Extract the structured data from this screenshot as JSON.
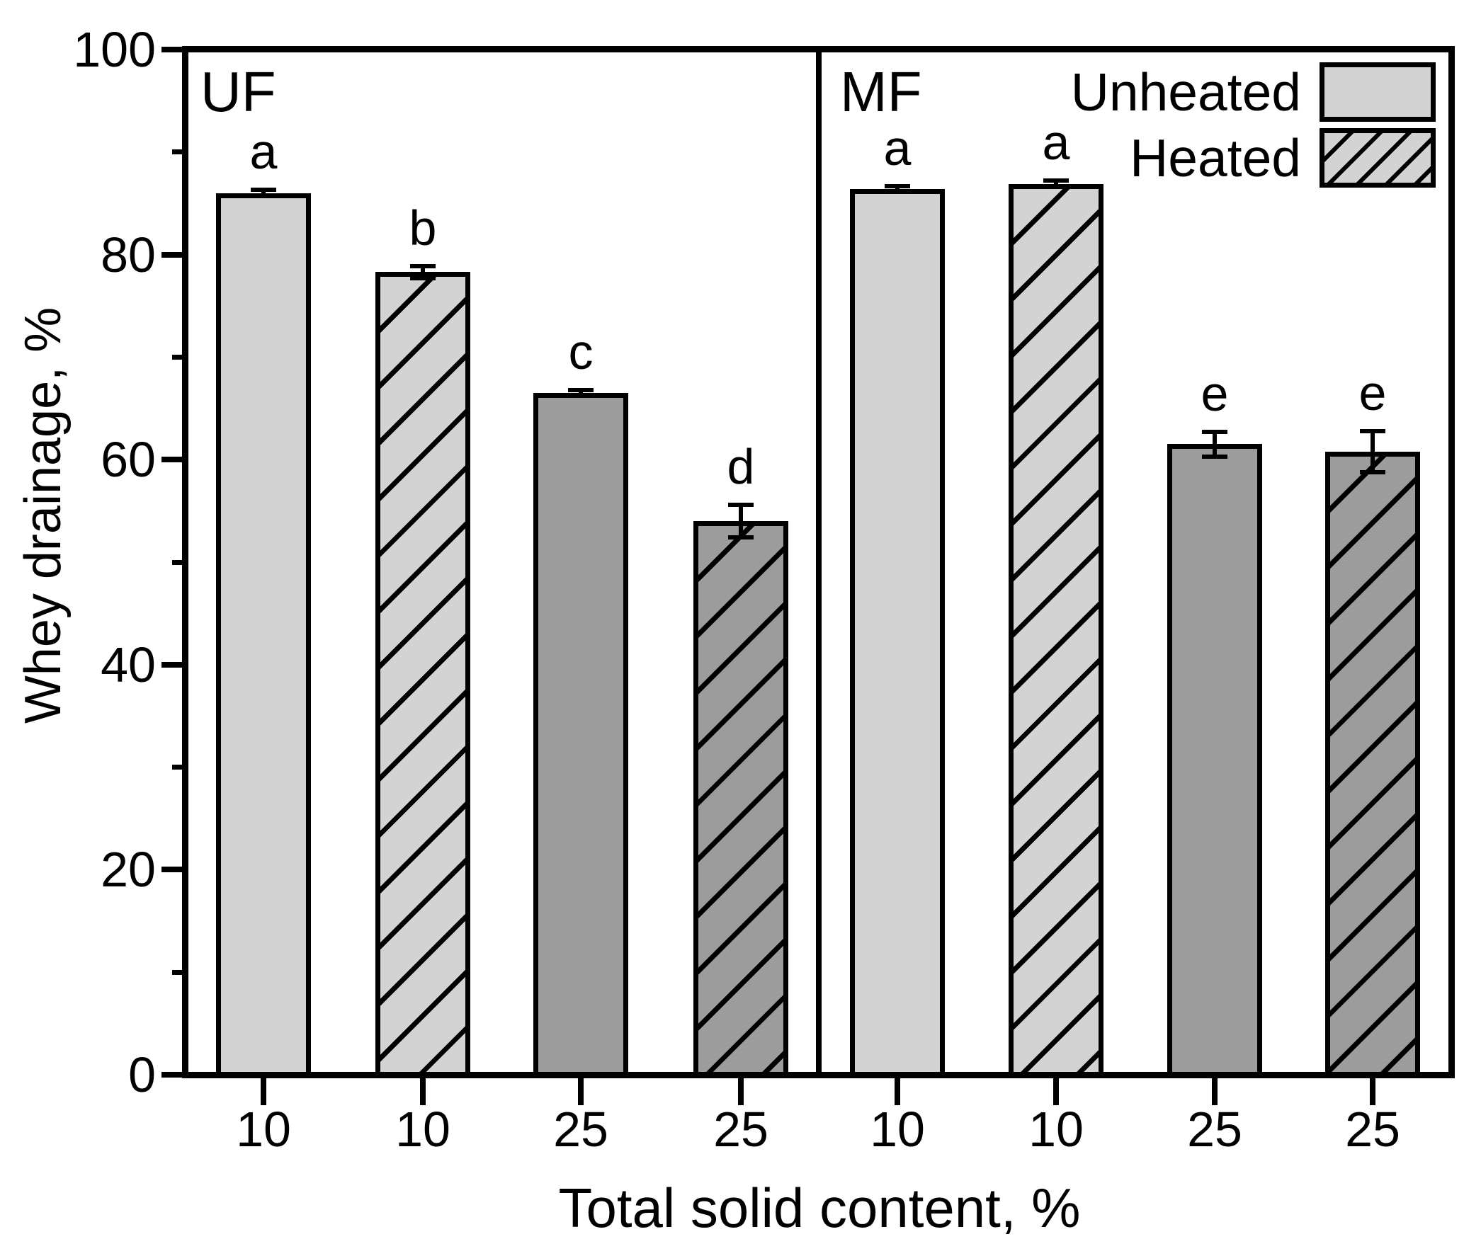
{
  "chart_data": {
    "type": "bar",
    "xlabel": "Total solid content, %",
    "ylabel": "Whey drainage, %",
    "ylim": [
      0,
      100
    ],
    "yticks_major": [
      0,
      20,
      40,
      60,
      80,
      100
    ],
    "yticks_minor": [
      10,
      30,
      50,
      70,
      90
    ],
    "grid": "off",
    "legend_position": "top-right-inside",
    "legend": [
      {
        "label": "Unheated",
        "hatch": false
      },
      {
        "label": "Heated",
        "hatch": true
      }
    ],
    "colors": {
      "light_gray_10_percent": "#d3d3d3",
      "dark_gray_25_percent": "#9c9c9c",
      "line": "#000000",
      "background": "#ffffff"
    },
    "panels": [
      {
        "label": "UF",
        "bars": [
          {
            "category": "10",
            "series": "Unheated",
            "value": 86.0,
            "error": 0.3,
            "letter": "a",
            "shade": "light",
            "hatch": false
          },
          {
            "category": "10",
            "series": "Heated",
            "value": 78.3,
            "error": 0.6,
            "letter": "b",
            "shade": "light",
            "hatch": true
          },
          {
            "category": "25",
            "series": "Unheated",
            "value": 66.5,
            "error": 0.3,
            "letter": "c",
            "shade": "dark",
            "hatch": false
          },
          {
            "category": "25",
            "series": "Heated",
            "value": 54.0,
            "error": 1.6,
            "letter": "d",
            "shade": "dark",
            "hatch": true
          }
        ]
      },
      {
        "label": "MF",
        "bars": [
          {
            "category": "10",
            "series": "Unheated",
            "value": 86.4,
            "error": 0.3,
            "letter": "a",
            "shade": "light",
            "hatch": false
          },
          {
            "category": "10",
            "series": "Heated",
            "value": 86.9,
            "error": 0.3,
            "letter": "a",
            "shade": "light",
            "hatch": true
          },
          {
            "category": "25",
            "series": "Unheated",
            "value": 61.5,
            "error": 1.2,
            "letter": "e",
            "shade": "dark",
            "hatch": false
          },
          {
            "category": "25",
            "series": "Heated",
            "value": 60.8,
            "error": 2.0,
            "letter": "e",
            "shade": "dark",
            "hatch": true
          }
        ]
      }
    ]
  }
}
